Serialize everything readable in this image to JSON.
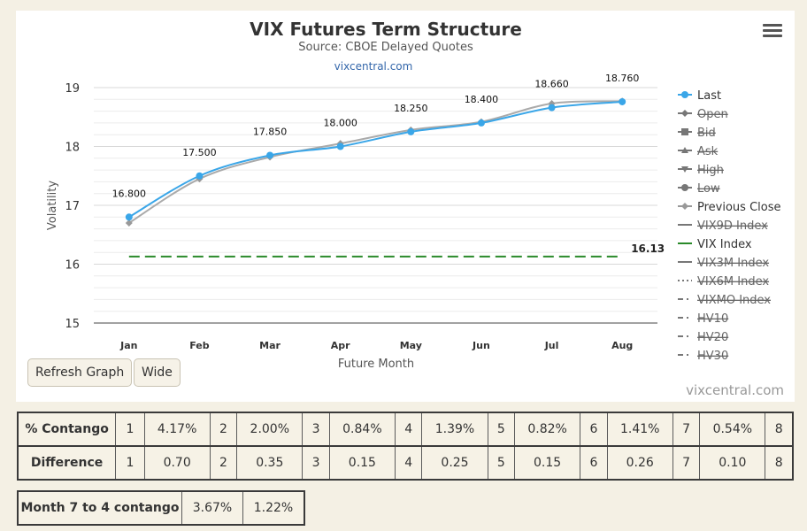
{
  "chart_data": {
    "type": "line",
    "title": "VIX Futures Term Structure",
    "subtitle": "Source: CBOE Delayed Quotes",
    "link": "vixcentral.com",
    "xlabel": "Future Month",
    "ylabel": "Volatility",
    "categories": [
      "Jan",
      "Feb",
      "Mar",
      "Apr",
      "May",
      "Jun",
      "Jul",
      "Aug"
    ],
    "y_ticks": [
      "15",
      "16",
      "17",
      "18",
      "19"
    ],
    "ylim": [
      15,
      19
    ],
    "series": [
      {
        "name": "Last",
        "color": "#3aa6e8",
        "values": [
          16.8,
          17.5,
          17.85,
          18.0,
          18.25,
          18.4,
          18.66,
          18.76
        ],
        "labels": [
          "16.800",
          "17.500",
          "17.850",
          "18.000",
          "18.250",
          "18.400",
          "18.660",
          "18.760"
        ]
      },
      {
        "name": "Previous Close",
        "color": "#aaaaaa",
        "values": [
          16.7,
          17.45,
          17.82,
          18.05,
          18.28,
          18.42,
          18.73,
          18.77
        ]
      },
      {
        "name": "VIX Index",
        "color": "#2a8a2a",
        "dashed": true,
        "value": 16.13,
        "label": "16.13"
      }
    ],
    "legend_position": "right",
    "legend": [
      {
        "name": "Last",
        "symbol": "circle",
        "color": "#3aa6e8",
        "hidden": false
      },
      {
        "name": "Open",
        "symbol": "diamond",
        "color": "#666666",
        "hidden": true
      },
      {
        "name": "Bid",
        "symbol": "square",
        "color": "#666666",
        "hidden": true
      },
      {
        "name": "Ask",
        "symbol": "triangle",
        "color": "#666666",
        "hidden": true
      },
      {
        "name": "High",
        "symbol": "triangle-down",
        "color": "#666666",
        "hidden": true
      },
      {
        "name": "Low",
        "symbol": "circle",
        "color": "#666666",
        "hidden": true
      },
      {
        "name": "Previous Close",
        "symbol": "diamond",
        "color": "#999999",
        "hidden": false
      },
      {
        "name": "VIX9D Index",
        "symbol": "solid",
        "color": "#666666",
        "hidden": true
      },
      {
        "name": "VIX Index",
        "symbol": "solid",
        "color": "#2a8a2a",
        "hidden": false
      },
      {
        "name": "VIX3M Index",
        "symbol": "solid",
        "color": "#666666",
        "hidden": true
      },
      {
        "name": "VIX6M Index",
        "symbol": "dotted",
        "color": "#666666",
        "hidden": true
      },
      {
        "name": "VIXMO Index",
        "symbol": "dash-dot",
        "color": "#666666",
        "hidden": true
      },
      {
        "name": "HV10",
        "symbol": "dash-dot",
        "color": "#666666",
        "hidden": true
      },
      {
        "name": "HV20",
        "symbol": "dash-dot",
        "color": "#666666",
        "hidden": true
      },
      {
        "name": "HV30",
        "symbol": "dash-dot",
        "color": "#666666",
        "hidden": true
      }
    ]
  },
  "buttons": {
    "refresh": "Refresh Graph",
    "wide": "Wide"
  },
  "credit": "vixcentral.com",
  "contango_table": {
    "rows": [
      {
        "label": "% Contango",
        "cells": [
          "1",
          "4.17%",
          "2",
          "2.00%",
          "3",
          "0.84%",
          "4",
          "1.39%",
          "5",
          "0.82%",
          "6",
          "1.41%",
          "7",
          "0.54%",
          "8"
        ]
      },
      {
        "label": "Difference",
        "cells": [
          "1",
          "0.70",
          "2",
          "0.35",
          "3",
          "0.15",
          "4",
          "0.25",
          "5",
          "0.15",
          "6",
          "0.26",
          "7",
          "0.10",
          "8"
        ]
      }
    ]
  },
  "month_table": {
    "label": "Month 7 to 4 contango",
    "values": [
      "3.67%",
      "1.22%"
    ]
  }
}
